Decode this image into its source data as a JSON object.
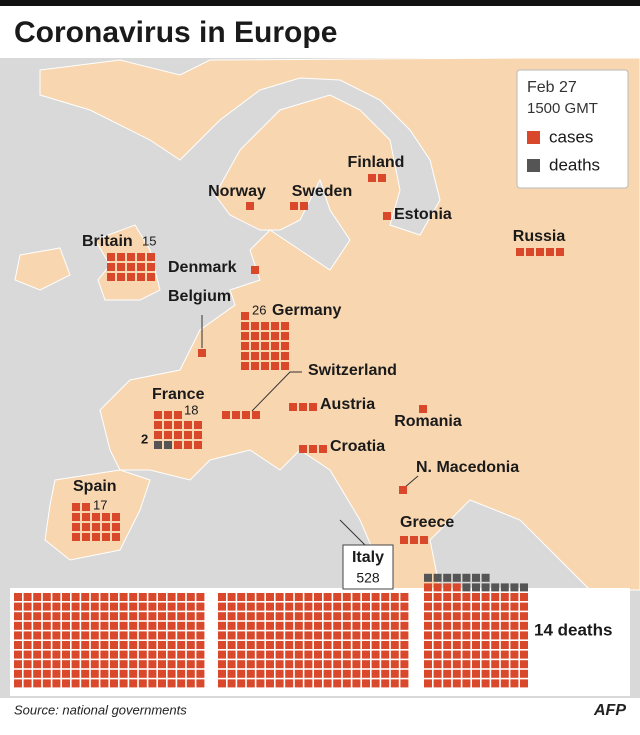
{
  "title": "Coronavirus in Europe",
  "legend": {
    "date": "Feb 27",
    "time": "1500 GMT",
    "cases": "cases",
    "deaths": "deaths"
  },
  "countries": [
    {
      "name": "Finland",
      "cases": 2
    },
    {
      "name": "Norway",
      "cases": 1
    },
    {
      "name": "Sweden",
      "cases": 2
    },
    {
      "name": "Estonia",
      "cases": 1
    },
    {
      "name": "Russia",
      "cases": 5
    },
    {
      "name": "Britain",
      "cases": 15
    },
    {
      "name": "Denmark",
      "cases": 1
    },
    {
      "name": "Belgium",
      "cases": 1
    },
    {
      "name": "Germany",
      "cases": 26
    },
    {
      "name": "Switzerland",
      "cases": 4
    },
    {
      "name": "France",
      "cases": 18,
      "deaths": 2
    },
    {
      "name": "Austria",
      "cases": 3
    },
    {
      "name": "Romania",
      "cases": 1
    },
    {
      "name": "Croatia",
      "cases": 3
    },
    {
      "name": "N. Macedonia",
      "cases": 1
    },
    {
      "name": "Spain",
      "cases": 17
    },
    {
      "name": "Greece",
      "cases": 3
    },
    {
      "name": "Italy",
      "cases": 528,
      "deaths": {
        "value": 14,
        "label": "14 deaths"
      }
    }
  ],
  "source": "Source: national governments",
  "credit": "AFP"
}
